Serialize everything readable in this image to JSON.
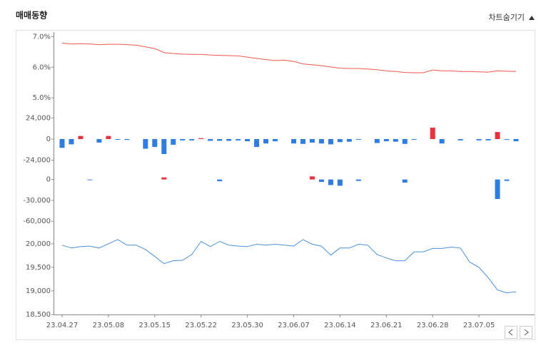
{
  "header": {
    "title": "매매동향",
    "toggle": "차트숨기기"
  },
  "chart_data": [
    {
      "type": "line",
      "color": "#ef5a4c",
      "ylim": [
        4.7,
        7.15
      ],
      "yticks": [
        {
          "value": 7,
          "label": "7.0%"
        },
        {
          "value": 6,
          "label": "6.0%"
        },
        {
          "value": 5,
          "label": "5.0%"
        }
      ],
      "values": [
        6.79,
        6.76,
        6.77,
        6.76,
        6.74,
        6.75,
        6.75,
        6.74,
        6.72,
        6.67,
        6.61,
        6.48,
        6.45,
        6.43,
        6.42,
        6.42,
        6.4,
        6.39,
        6.38,
        6.37,
        6.33,
        6.29,
        6.25,
        6.22,
        6.23,
        6.19,
        6.11,
        6.08,
        6.05,
        6.01,
        5.97,
        5.96,
        5.96,
        5.94,
        5.92,
        5.88,
        5.86,
        5.83,
        5.82,
        5.82,
        5.91,
        5.88,
        5.88,
        5.86,
        5.86,
        5.85,
        5.84,
        5.88,
        5.87,
        5.86
      ]
    },
    {
      "type": "bar",
      "positive_color": "#e8333f",
      "negative_color": "#2f7de1",
      "ylim": [
        -30000,
        30000
      ],
      "yticks": [
        {
          "value": 24000,
          "label": "24,000"
        },
        0,
        {
          "value": -24000,
          "label": "-24,000"
        }
      ],
      "values": [
        -10000,
        -6000,
        3500,
        0,
        -4000,
        3500,
        -800,
        -1000,
        0,
        -11000,
        -9000,
        -17000,
        -6500,
        -1500,
        -1500,
        1000,
        -2000,
        -2000,
        -2000,
        -1500,
        -2500,
        -9000,
        -5000,
        -2500,
        0,
        -5000,
        -5500,
        -4000,
        -5000,
        -6000,
        -3500,
        -3000,
        -800,
        0,
        -4500,
        -2500,
        -3000,
        -5500,
        -800,
        0,
        13000,
        -5000,
        0,
        -1500,
        0,
        -1500,
        -1500,
        8000,
        -800,
        -2500
      ]
    },
    {
      "type": "bar",
      "positive_color": "#e8333f",
      "negative_color": "#2f7de1",
      "ylim": [
        -70000,
        12000
      ],
      "yticks": [
        0,
        {
          "value": -30000,
          "label": "-30,000"
        },
        {
          "value": -60000,
          "label": "-60,000"
        }
      ],
      "values": [
        0,
        0,
        0,
        -1000,
        0,
        0,
        0,
        0,
        0,
        0,
        0,
        3000,
        0,
        0,
        0,
        0,
        0,
        -2500,
        0,
        0,
        0,
        0,
        0,
        0,
        0,
        0,
        0,
        4500,
        -3500,
        -8000,
        -9000,
        0,
        -2000,
        0,
        0,
        0,
        0,
        -4500,
        0,
        0,
        0,
        0,
        0,
        0,
        0,
        0,
        0,
        -28000,
        -2000,
        0
      ]
    },
    {
      "type": "line",
      "color": "#4a90d9",
      "ylim": [
        18500,
        20300
      ],
      "yticks": [
        {
          "value": 20000,
          "label": "20,000"
        },
        {
          "value": 19500,
          "label": "19,500"
        },
        {
          "value": 19000,
          "label": "19,000"
        },
        {
          "value": 18500,
          "label": "18,500"
        }
      ],
      "categories": [
        "23.04.27",
        null,
        null,
        null,
        null,
        "23.05.08",
        null,
        null,
        null,
        null,
        "23.05.15",
        null,
        null,
        null,
        null,
        "23.05.22",
        null,
        null,
        null,
        null,
        "23.05.30",
        null,
        null,
        null,
        null,
        "23.06.07",
        null,
        null,
        null,
        null,
        "23.06.14",
        null,
        null,
        null,
        null,
        "23.06.21",
        null,
        null,
        null,
        null,
        "23.06.28",
        null,
        null,
        null,
        null,
        "23.07.05",
        null,
        null,
        null,
        null
      ],
      "values": [
        19970,
        19910,
        19940,
        19950,
        19910,
        20000,
        20090,
        19970,
        19970,
        19880,
        19730,
        19580,
        19640,
        19650,
        19770,
        20050,
        19940,
        20050,
        19970,
        19950,
        19940,
        19990,
        19970,
        19990,
        19970,
        19950,
        20090,
        19990,
        19950,
        19760,
        19910,
        19910,
        19990,
        19970,
        19770,
        19700,
        19640,
        19640,
        19830,
        19830,
        19900,
        19900,
        19930,
        19910,
        19610,
        19500,
        19280,
        19020,
        18960,
        18980
      ]
    }
  ]
}
